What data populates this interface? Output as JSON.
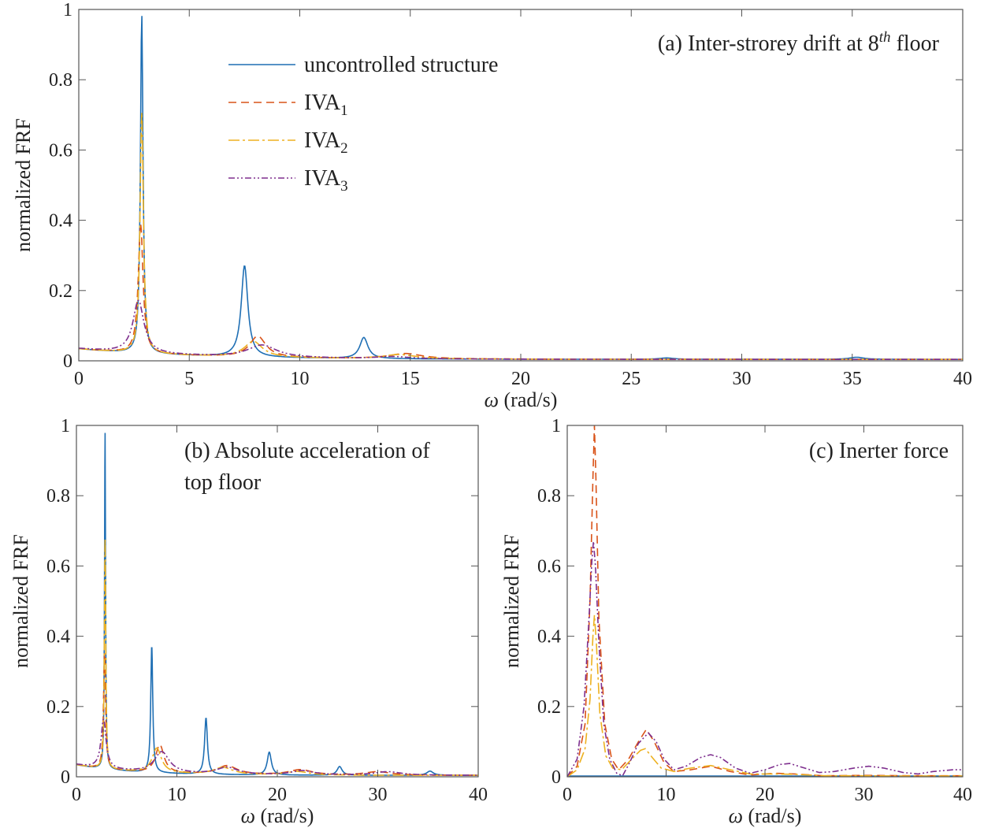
{
  "colors": {
    "uncontrolled": "#1f6fb4",
    "iva1": "#d95319",
    "iva2": "#edb120",
    "iva3": "#7e2f8e"
  },
  "legend": [
    {
      "key": "uncontrolled",
      "label": "uncontrolled structure",
      "sub": "",
      "dash": ""
    },
    {
      "key": "iva1",
      "label": "IVA",
      "sub": "1",
      "dash": "10,6"
    },
    {
      "key": "iva2",
      "label": "IVA",
      "sub": "2",
      "dash": "14,4,3,4"
    },
    {
      "key": "iva3",
      "label": "IVA",
      "sub": "3",
      "dash": "8,3,2,3,2,3"
    }
  ],
  "chart_data": [
    {
      "id": "a",
      "type": "line",
      "annotation": "(a) Inter-strorey drift at 8",
      "annotation_sup": "th",
      "annotation_tail": " floor",
      "xlabel": "ω (rad/s)",
      "ylabel": "normalized FRF",
      "xlim": [
        0,
        40
      ],
      "ylim": [
        0,
        1
      ],
      "xticks": [
        0,
        5,
        10,
        15,
        20,
        25,
        30,
        35,
        40
      ],
      "yticks": [
        0,
        0.2,
        0.4,
        0.6,
        0.8,
        1
      ],
      "grid": false,
      "legend_position": "top-center",
      "series": [
        {
          "key": "uncontrolled",
          "peaks": [
            [
              2.85,
              0.97,
              0.07
            ],
            [
              7.5,
              0.26,
              0.18
            ],
            [
              12.9,
              0.06,
              0.22
            ],
            [
              26.6,
              0.004,
              0.4
            ],
            [
              35.2,
              0.006,
              0.4
            ]
          ]
        },
        {
          "key": "iva1",
          "peaks": [
            [
              2.8,
              0.37,
              0.13
            ],
            [
              8.1,
              0.06,
              0.45
            ],
            [
              14.8,
              0.015,
              0.9
            ]
          ]
        },
        {
          "key": "iva2",
          "peaks": [
            [
              2.85,
              0.69,
              0.09
            ],
            [
              7.9,
              0.045,
              0.5
            ],
            [
              14.5,
              0.012,
              0.9
            ]
          ]
        },
        {
          "key": "iva3",
          "peaks": [
            [
              2.7,
              0.15,
              0.3
            ],
            [
              8.3,
              0.035,
              0.8
            ],
            [
              14.2,
              0.006,
              0.9
            ]
          ]
        }
      ]
    },
    {
      "id": "b",
      "type": "line",
      "annotation": "(b) Absolute acceleration of",
      "annotation_line2": "top floor",
      "xlabel": "ω (rad/s)",
      "ylabel": "normalized FRF",
      "xlim": [
        0,
        40
      ],
      "ylim": [
        0,
        1
      ],
      "xticks": [
        0,
        10,
        20,
        30,
        40
      ],
      "yticks": [
        0,
        0.2,
        0.4,
        0.6,
        0.8,
        1
      ],
      "grid": false,
      "series": [
        {
          "key": "uncontrolled",
          "peaks": [
            [
              2.85,
              0.97,
              0.06
            ],
            [
              7.5,
              0.36,
              0.12
            ],
            [
              12.9,
              0.16,
              0.17
            ],
            [
              19.2,
              0.065,
              0.25
            ],
            [
              26.2,
              0.025,
              0.3
            ],
            [
              35.2,
              0.012,
              0.4
            ]
          ]
        },
        {
          "key": "iva1",
          "peaks": [
            [
              2.8,
              0.33,
              0.12
            ],
            [
              8.3,
              0.08,
              0.5
            ],
            [
              15.0,
              0.025,
              1.2
            ],
            [
              22.3,
              0.015,
              1.4
            ],
            [
              30.0,
              0.01,
              1.5
            ]
          ]
        },
        {
          "key": "iva2",
          "peaks": [
            [
              2.85,
              0.66,
              0.08
            ],
            [
              8.0,
              0.07,
              0.55
            ],
            [
              14.6,
              0.02,
              1.2
            ],
            [
              22.0,
              0.01,
              1.4
            ]
          ]
        },
        {
          "key": "iva3",
          "peaks": [
            [
              2.7,
              0.14,
              0.3
            ],
            [
              8.5,
              0.06,
              0.9
            ],
            [
              15.0,
              0.02,
              1.3
            ],
            [
              22.5,
              0.012,
              1.4
            ],
            [
              31.0,
              0.01,
              1.6
            ]
          ]
        }
      ]
    },
    {
      "id": "c",
      "type": "line",
      "annotation": "(c) Inerter force",
      "xlabel": "ω (rad/s)",
      "ylabel": "normalized FRF",
      "xlim": [
        0,
        40
      ],
      "ylim": [
        0,
        1
      ],
      "xticks": [
        0,
        10,
        20,
        30,
        40
      ],
      "yticks": [
        0,
        0.2,
        0.4,
        0.6,
        0.8,
        1
      ],
      "grid": false,
      "series": [
        {
          "key": "uncontrolled",
          "peaks": []
        },
        {
          "key": "iva1",
          "points": [
            [
              0,
              0
            ],
            [
              1,
              0.03
            ],
            [
              1.8,
              0.15
            ],
            [
              2.3,
              0.5
            ],
            [
              2.6,
              0.85
            ],
            [
              2.75,
              1.0
            ],
            [
              2.9,
              0.85
            ],
            [
              3.2,
              0.45
            ],
            [
              3.8,
              0.15
            ],
            [
              4.5,
              0.05
            ],
            [
              5.2,
              0.02
            ],
            [
              6.2,
              0.05
            ],
            [
              7.2,
              0.1
            ],
            [
              8.0,
              0.135
            ],
            [
              8.8,
              0.1
            ],
            [
              9.8,
              0.04
            ],
            [
              10.8,
              0.015
            ],
            [
              12.5,
              0.02
            ],
            [
              14.5,
              0.03
            ],
            [
              16.5,
              0.015
            ],
            [
              18.5,
              0.005
            ],
            [
              21,
              0.01
            ],
            [
              23,
              0.008
            ],
            [
              26,
              0.003
            ],
            [
              30,
              0.004
            ],
            [
              35,
              0.003
            ],
            [
              40,
              0.003
            ]
          ]
        },
        {
          "key": "iva2",
          "points": [
            [
              0,
              0
            ],
            [
              1,
              0.02
            ],
            [
              1.8,
              0.08
            ],
            [
              2.3,
              0.22
            ],
            [
              2.6,
              0.4
            ],
            [
              2.75,
              0.46
            ],
            [
              2.95,
              0.38
            ],
            [
              3.3,
              0.18
            ],
            [
              3.9,
              0.06
            ],
            [
              4.6,
              0.025
            ],
            [
              5.5,
              0.02
            ],
            [
              6.5,
              0.05
            ],
            [
              7.4,
              0.075
            ],
            [
              7.9,
              0.08
            ],
            [
              8.6,
              0.055
            ],
            [
              9.5,
              0.025
            ],
            [
              10.8,
              0.015
            ],
            [
              12.5,
              0.025
            ],
            [
              14.5,
              0.032
            ],
            [
              16.5,
              0.02
            ],
            [
              18.5,
              0.008
            ],
            [
              21,
              0.008
            ],
            [
              23,
              0.007
            ],
            [
              26,
              0.003
            ],
            [
              30,
              0.003
            ],
            [
              35,
              0.002
            ],
            [
              40,
              0.002
            ]
          ]
        },
        {
          "key": "iva3",
          "points": [
            [
              0,
              0
            ],
            [
              1,
              0.05
            ],
            [
              1.7,
              0.2
            ],
            [
              2.2,
              0.45
            ],
            [
              2.5,
              0.62
            ],
            [
              2.65,
              0.67
            ],
            [
              2.85,
              0.6
            ],
            [
              3.2,
              0.38
            ],
            [
              3.7,
              0.15
            ],
            [
              4.3,
              0.05
            ],
            [
              5.0,
              0.01
            ],
            [
              5.6,
              0.003
            ],
            [
              6.3,
              0.04
            ],
            [
              7.2,
              0.095
            ],
            [
              8.2,
              0.125
            ],
            [
              9.0,
              0.1
            ],
            [
              9.8,
              0.05
            ],
            [
              10.8,
              0.02
            ],
            [
              12,
              0.03
            ],
            [
              13.5,
              0.055
            ],
            [
              14.5,
              0.063
            ],
            [
              15.5,
              0.055
            ],
            [
              17,
              0.025
            ],
            [
              18.5,
              0.01
            ],
            [
              20,
              0.02
            ],
            [
              21.5,
              0.035
            ],
            [
              22.5,
              0.038
            ],
            [
              24,
              0.025
            ],
            [
              25.5,
              0.012
            ],
            [
              27,
              0.015
            ],
            [
              29,
              0.025
            ],
            [
              30.5,
              0.03
            ],
            [
              32,
              0.025
            ],
            [
              34,
              0.012
            ],
            [
              35.5,
              0.008
            ],
            [
              37,
              0.015
            ],
            [
              39,
              0.02
            ],
            [
              40,
              0.02
            ]
          ]
        }
      ]
    }
  ]
}
